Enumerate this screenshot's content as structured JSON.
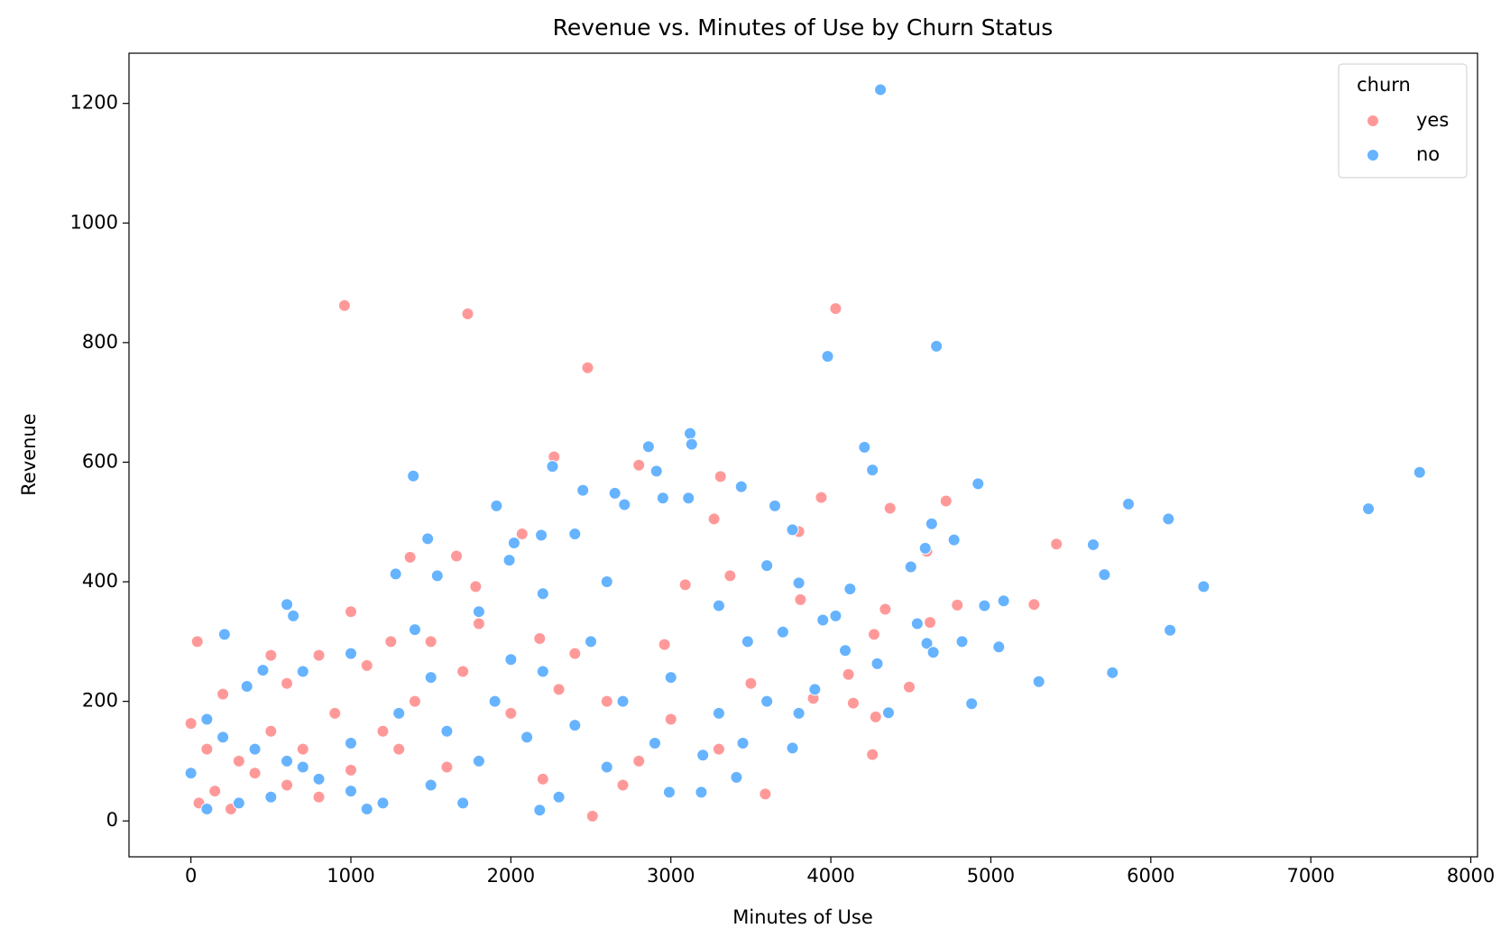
{
  "chart_data": {
    "type": "scatter",
    "title": "Revenue vs. Minutes of Use by Churn Status",
    "x_label": "Minutes of Use",
    "y_label": "Revenue",
    "legend_title": "churn",
    "legend": "upper right",
    "xlim": [
      -387,
      8042
    ],
    "ylim": [
      -60,
      1284
    ],
    "xticks": [
      0,
      1000,
      2000,
      3000,
      4000,
      5000,
      6000,
      7000,
      8000
    ],
    "yticks": [
      0,
      200,
      400,
      600,
      800,
      1000,
      1200
    ],
    "series": [
      {
        "name": "yes",
        "color": "#ff9999",
        "x": [
          960,
          1730,
          4030,
          2480,
          2270,
          2800,
          3310,
          3940,
          4370,
          4720,
          5410,
          4600,
          5270,
          4790,
          4340,
          4620,
          4270,
          4490,
          4280,
          4260,
          3590,
          2510,
          40,
          1000,
          1660,
          1370,
          2070,
          1780,
          3270,
          3800,
          3810,
          4110,
          4140,
          3890,
          3370,
          2960,
          3090,
          2180,
          1500,
          1250,
          800,
          500,
          600,
          200,
          0,
          100,
          300,
          400,
          600,
          800,
          1000,
          1200,
          1400,
          1700,
          2000,
          2300,
          2600,
          2800,
          3000,
          3300,
          1100,
          1300,
          1600,
          2200,
          2700,
          900,
          700,
          500,
          50,
          150,
          250,
          1800,
          2400,
          3500
        ],
        "y": [
          862,
          848,
          857,
          758,
          609,
          595,
          576,
          541,
          523,
          535,
          463,
          451,
          362,
          361,
          354,
          332,
          312,
          224,
          174,
          111,
          45,
          8,
          300,
          350,
          443,
          441,
          480,
          392,
          505,
          484,
          370,
          245,
          197,
          205,
          410,
          295,
          395,
          305,
          300,
          300,
          277,
          277,
          230,
          212,
          163,
          120,
          100,
          80,
          60,
          40,
          85,
          150,
          200,
          250,
          180,
          220,
          200,
          100,
          170,
          120,
          260,
          120,
          90,
          70,
          60,
          180,
          120,
          150,
          30,
          50,
          20,
          330,
          280,
          230
        ]
      },
      {
        "name": "no",
        "color": "#66b3ff",
        "x": [
          4310,
          4660,
          3980,
          3120,
          3130,
          2860,
          4210,
          4260,
          2910,
          2260,
          1390,
          7680,
          7360,
          6110,
          5860,
          4920,
          3440,
          3650,
          2710,
          1910,
          2450,
          2650,
          3110,
          2950,
          4630,
          4770,
          5640,
          5710,
          4500,
          6330,
          4590,
          3760,
          4120,
          4030,
          3950,
          4540,
          4600,
          4640,
          4820,
          4960,
          5080,
          5050,
          6120,
          5760,
          5300,
          4880,
          4360,
          4290,
          4090,
          3760,
          3410,
          3190,
          2990,
          2180,
          210,
          600,
          640,
          1480,
          2020,
          2190,
          2400,
          1990,
          1540,
          1280,
          3600,
          3800,
          3700,
          3480,
          3300,
          2600,
          2200,
          1800,
          1400,
          1000,
          700,
          450,
          350,
          100,
          0,
          200,
          400,
          600,
          800,
          1000,
          1200,
          1500,
          1800,
          2100,
          2400,
          2700,
          3000,
          3300,
          3600,
          3900,
          2500,
          2200,
          1900,
          1600,
          1300,
          1000,
          700,
          500,
          300,
          100,
          2900,
          3200,
          2600,
          2300,
          1700,
          1100,
          3450,
          3800,
          2000,
          1500
        ],
        "y": [
          1223,
          794,
          777,
          648,
          630,
          626,
          625,
          587,
          585,
          593,
          577,
          583,
          522,
          505,
          530,
          564,
          559,
          527,
          529,
          527,
          553,
          548,
          540,
          540,
          497,
          470,
          462,
          412,
          425,
          392,
          456,
          487,
          388,
          343,
          336,
          330,
          297,
          282,
          300,
          360,
          368,
          291,
          319,
          248,
          233,
          196,
          181,
          263,
          285,
          122,
          73,
          48,
          48,
          18,
          312,
          362,
          343,
          472,
          465,
          478,
          480,
          436,
          410,
          413,
          427,
          398,
          316,
          300,
          360,
          400,
          380,
          350,
          320,
          280,
          250,
          252,
          225,
          170,
          80,
          140,
          120,
          100,
          70,
          50,
          30,
          60,
          100,
          140,
          160,
          200,
          240,
          180,
          200,
          220,
          300,
          250,
          200,
          150,
          180,
          130,
          90,
          40,
          30,
          20,
          130,
          110,
          90,
          40,
          30,
          20,
          130,
          180,
          270,
          240
        ]
      }
    ]
  }
}
